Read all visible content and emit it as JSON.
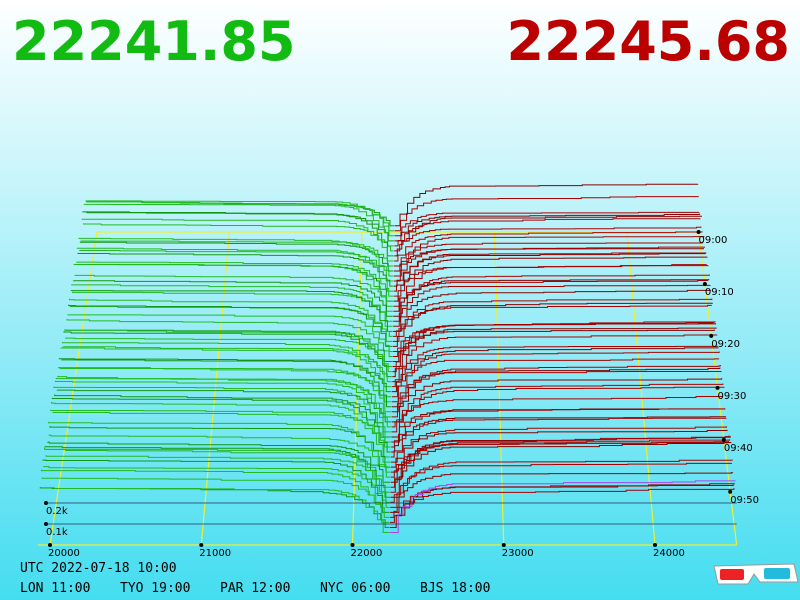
{
  "bid": 22241.85,
  "ask": 22245.68,
  "price_ticks": [
    20000,
    21000,
    22000,
    23000,
    24000
  ],
  "depth_ticks": [
    {
      "value": 100,
      "label": "0.1k"
    },
    {
      "value": 200,
      "label": "0.2k"
    }
  ],
  "time_ticks": [
    "09:00",
    "09:10",
    "09:20",
    "09:30",
    "09:40",
    "09:50"
  ],
  "utc": "UTC 2022-07-18 10:00",
  "clocks": [
    "LON 11:00",
    "TYO 19:00",
    "PAR 12:00",
    "NYC 06:00",
    "BJS 18:00"
  ]
}
